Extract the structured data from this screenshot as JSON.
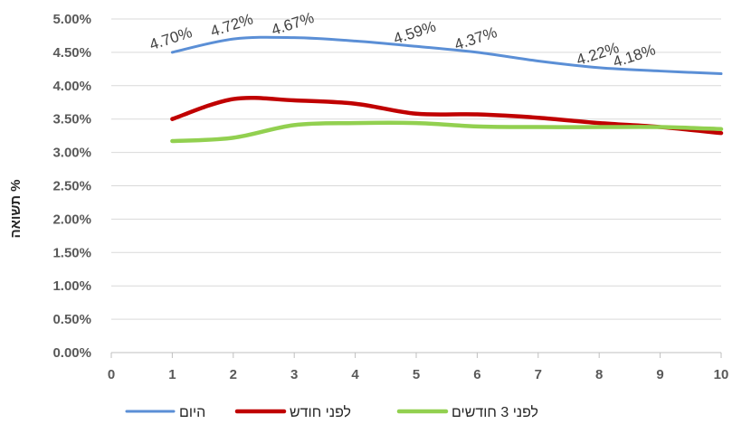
{
  "chart_data": {
    "type": "line",
    "title": "",
    "xlabel": "",
    "ylabel": "תשואה %",
    "xlim": [
      0,
      10
    ],
    "ylim": [
      0,
      0.05
    ],
    "x_ticks": [
      0,
      1,
      2,
      3,
      4,
      5,
      6,
      7,
      8,
      9,
      10
    ],
    "y_ticks": [
      "0.00%",
      "0.50%",
      "1.00%",
      "1.50%",
      "2.00%",
      "2.50%",
      "3.00%",
      "3.50%",
      "4.00%",
      "4.50%",
      "5.00%"
    ],
    "grid": "horizontal",
    "legend_position": "bottom",
    "series": [
      {
        "name": "היום",
        "color": "#5b8fd6",
        "x": [
          1,
          2,
          3,
          4,
          5,
          6,
          7,
          8,
          9,
          10
        ],
        "values": [
          0.045,
          0.047,
          0.0472,
          0.0467,
          0.0459,
          0.045,
          0.0437,
          0.0427,
          0.0422,
          0.0418
        ],
        "data_labels": [
          {
            "x": 1,
            "text": "4.70%"
          },
          {
            "x": 2,
            "text": "4.72%"
          },
          {
            "x": 3,
            "text": "4.67%"
          },
          {
            "x": 5,
            "text": "4.59%"
          },
          {
            "x": 6,
            "text": "4.37%"
          },
          {
            "x": 8,
            "text": "4.22%"
          },
          {
            "x": 8.6,
            "text": "4.18%"
          }
        ]
      },
      {
        "name": "לפני חודש",
        "color": "#c00000",
        "x": [
          1,
          2,
          3,
          4,
          5,
          6,
          7,
          8,
          9,
          10
        ],
        "values": [
          0.035,
          0.038,
          0.0378,
          0.0373,
          0.0358,
          0.0357,
          0.0352,
          0.0344,
          0.0338,
          0.0329
        ]
      },
      {
        "name": "לפני 3 חודשים",
        "color": "#92d050",
        "x": [
          1,
          2,
          3,
          4,
          5,
          6,
          7,
          8,
          9,
          10
        ],
        "values": [
          0.0317,
          0.0322,
          0.0341,
          0.0344,
          0.0344,
          0.0339,
          0.0338,
          0.0338,
          0.0338,
          0.0335
        ]
      }
    ]
  }
}
